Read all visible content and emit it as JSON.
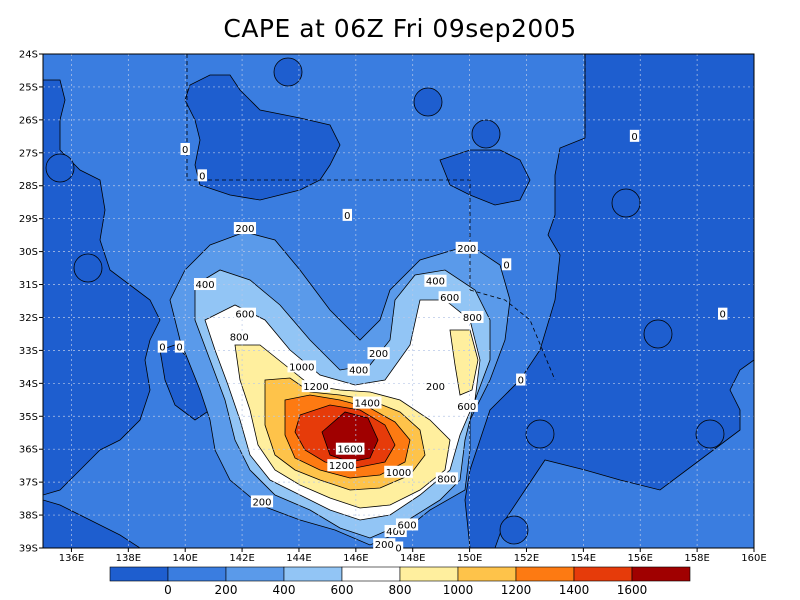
{
  "title": "CAPE at 06Z Fri 09sep2005",
  "chart_data": {
    "type": "heatmap",
    "variable": "CAPE",
    "xlim": [
      135,
      160
    ],
    "ylim": [
      -39,
      -24
    ],
    "x_ticks": [
      "136E",
      "138E",
      "140E",
      "142E",
      "144E",
      "146E",
      "148E",
      "150E",
      "152E",
      "154E",
      "156E",
      "158E",
      "160E"
    ],
    "x_tick_values": [
      136,
      138,
      140,
      142,
      144,
      146,
      148,
      150,
      152,
      154,
      156,
      158,
      160
    ],
    "y_ticks": [
      "24S",
      "25S",
      "26S",
      "27S",
      "28S",
      "29S",
      "30S",
      "31S",
      "32S",
      "33S",
      "34S",
      "35S",
      "36S",
      "37S",
      "38S",
      "39S"
    ],
    "y_tick_values": [
      -24,
      -25,
      -26,
      -27,
      -28,
      -29,
      -30,
      -31,
      -32,
      -33,
      -34,
      -35,
      -36,
      -37,
      -38,
      -39
    ],
    "grid": true,
    "colorbar": {
      "labels": [
        "0",
        "200",
        "400",
        "600",
        "800",
        "1000",
        "1200",
        "1400",
        "1600"
      ],
      "levels": [
        0,
        200,
        400,
        600,
        800,
        1000,
        1200,
        1400,
        1600
      ],
      "colors": [
        "#1e5ecf",
        "#3a7de0",
        "#5a9aea",
        "#92c5f5",
        "#ffffff",
        "#ffef9e",
        "#fec34a",
        "#fd7a12",
        "#e63b0a",
        "#a00000"
      ]
    },
    "background_color": "#3a7de0",
    "negative_color": "#1e5ecf",
    "contour_labels": [
      {
        "text": "0",
        "lon": 140.0,
        "lat": -26.9
      },
      {
        "text": "0",
        "lon": 140.6,
        "lat": -27.7
      },
      {
        "text": "0",
        "lon": 145.7,
        "lat": -28.9
      },
      {
        "text": "0",
        "lon": 151.3,
        "lat": -30.4
      },
      {
        "text": "0",
        "lon": 155.8,
        "lat": -26.5
      },
      {
        "text": "0",
        "lon": 158.9,
        "lat": -31.9
      },
      {
        "text": "0",
        "lon": 139.2,
        "lat": -32.9
      },
      {
        "text": "0",
        "lon": 139.8,
        "lat": -32.9
      },
      {
        "text": "0",
        "lon": 151.8,
        "lat": -33.9
      },
      {
        "text": "0",
        "lon": 147.5,
        "lat": -39.0
      },
      {
        "text": "200",
        "lon": 142.1,
        "lat": -29.3
      },
      {
        "text": "200",
        "lon": 149.9,
        "lat": -29.9
      },
      {
        "text": "200",
        "lon": 146.8,
        "lat": -33.1
      },
      {
        "text": "200",
        "lon": 148.8,
        "lat": -34.1
      },
      {
        "text": "200",
        "lon": 142.7,
        "lat": -37.6
      },
      {
        "text": "200",
        "lon": 147.0,
        "lat": -38.9
      },
      {
        "text": "400",
        "lon": 140.7,
        "lat": -31.0
      },
      {
        "text": "400",
        "lon": 148.8,
        "lat": -30.9
      },
      {
        "text": "400",
        "lon": 146.1,
        "lat": -33.6
      },
      {
        "text": "400",
        "lon": 147.4,
        "lat": -38.5
      },
      {
        "text": "600",
        "lon": 142.1,
        "lat": -31.9
      },
      {
        "text": "600",
        "lon": 149.3,
        "lat": -31.4
      },
      {
        "text": "600",
        "lon": 149.9,
        "lat": -34.7
      },
      {
        "text": "600",
        "lon": 147.8,
        "lat": -38.3
      },
      {
        "text": "800",
        "lon": 141.9,
        "lat": -32.6
      },
      {
        "text": "800",
        "lon": 150.1,
        "lat": -32.0
      },
      {
        "text": "800",
        "lon": 149.2,
        "lat": -36.9
      },
      {
        "text": "1000",
        "lon": 144.1,
        "lat": -33.5
      },
      {
        "text": "1000",
        "lon": 147.5,
        "lat": -36.7
      },
      {
        "text": "1200",
        "lon": 144.6,
        "lat": -34.1
      },
      {
        "text": "1200",
        "lon": 145.5,
        "lat": -36.5
      },
      {
        "text": "1400",
        "lon": 146.4,
        "lat": -34.6
      },
      {
        "text": "1600",
        "lon": 145.8,
        "lat": -36.0
      }
    ]
  }
}
